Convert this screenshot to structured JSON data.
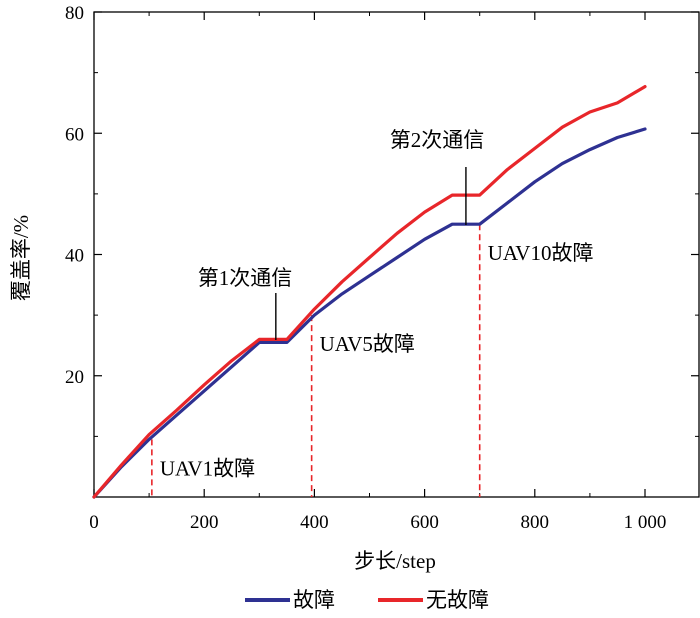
{
  "chart_data": {
    "type": "line",
    "xlabel": "步长/step",
    "ylabel": "覆盖率/%",
    "xlim": [
      0,
      1100
    ],
    "ylim": [
      0,
      80
    ],
    "x_ticks": [
      0,
      200,
      400,
      600,
      800,
      1000
    ],
    "x_tick_labels": [
      "0",
      "200",
      "400",
      "600",
      "800",
      "1 000"
    ],
    "y_ticks": [
      20,
      40,
      60,
      80
    ],
    "y_tick_labels": [
      "20",
      "40",
      "60",
      "80"
    ],
    "legend_position": "bottom",
    "series": [
      {
        "name": "故障",
        "color": "#2e3192",
        "points": [
          [
            0,
            0
          ],
          [
            50,
            5
          ],
          [
            100,
            9.5
          ],
          [
            150,
            13.5
          ],
          [
            200,
            17.5
          ],
          [
            250,
            21.5
          ],
          [
            300,
            25.5
          ],
          [
            350,
            25.5
          ],
          [
            400,
            30
          ],
          [
            450,
            33.5
          ],
          [
            500,
            36.5
          ],
          [
            550,
            39.5
          ],
          [
            600,
            42.5
          ],
          [
            650,
            45
          ],
          [
            700,
            45
          ],
          [
            750,
            48.5
          ],
          [
            800,
            52
          ],
          [
            850,
            55
          ],
          [
            900,
            57.3
          ],
          [
            950,
            59.3
          ],
          [
            1000,
            60.7
          ]
        ]
      },
      {
        "name": "无故障",
        "color": "#e8262a",
        "points": [
          [
            0,
            0
          ],
          [
            50,
            5.3
          ],
          [
            100,
            10.3
          ],
          [
            150,
            14.3
          ],
          [
            200,
            18.5
          ],
          [
            250,
            22.5
          ],
          [
            300,
            26
          ],
          [
            350,
            26
          ],
          [
            400,
            31
          ],
          [
            450,
            35.5
          ],
          [
            500,
            39.5
          ],
          [
            550,
            43.5
          ],
          [
            600,
            47
          ],
          [
            650,
            49.8
          ],
          [
            700,
            49.8
          ],
          [
            750,
            54
          ],
          [
            800,
            57.5
          ],
          [
            850,
            61
          ],
          [
            900,
            63.5
          ],
          [
            950,
            65
          ],
          [
            1000,
            67.7
          ]
        ]
      }
    ],
    "annotations": [
      {
        "text": "第1次通信",
        "x": 330,
        "y": 26
      },
      {
        "text": "第2次通信",
        "x": 675,
        "y": 45
      },
      {
        "text": "UAV1故障",
        "x": 105,
        "y": 9.5
      },
      {
        "text": "UAV5故障",
        "x": 395,
        "y": 30
      },
      {
        "text": "UAV10故障",
        "x": 700,
        "y": 45
      }
    ]
  }
}
